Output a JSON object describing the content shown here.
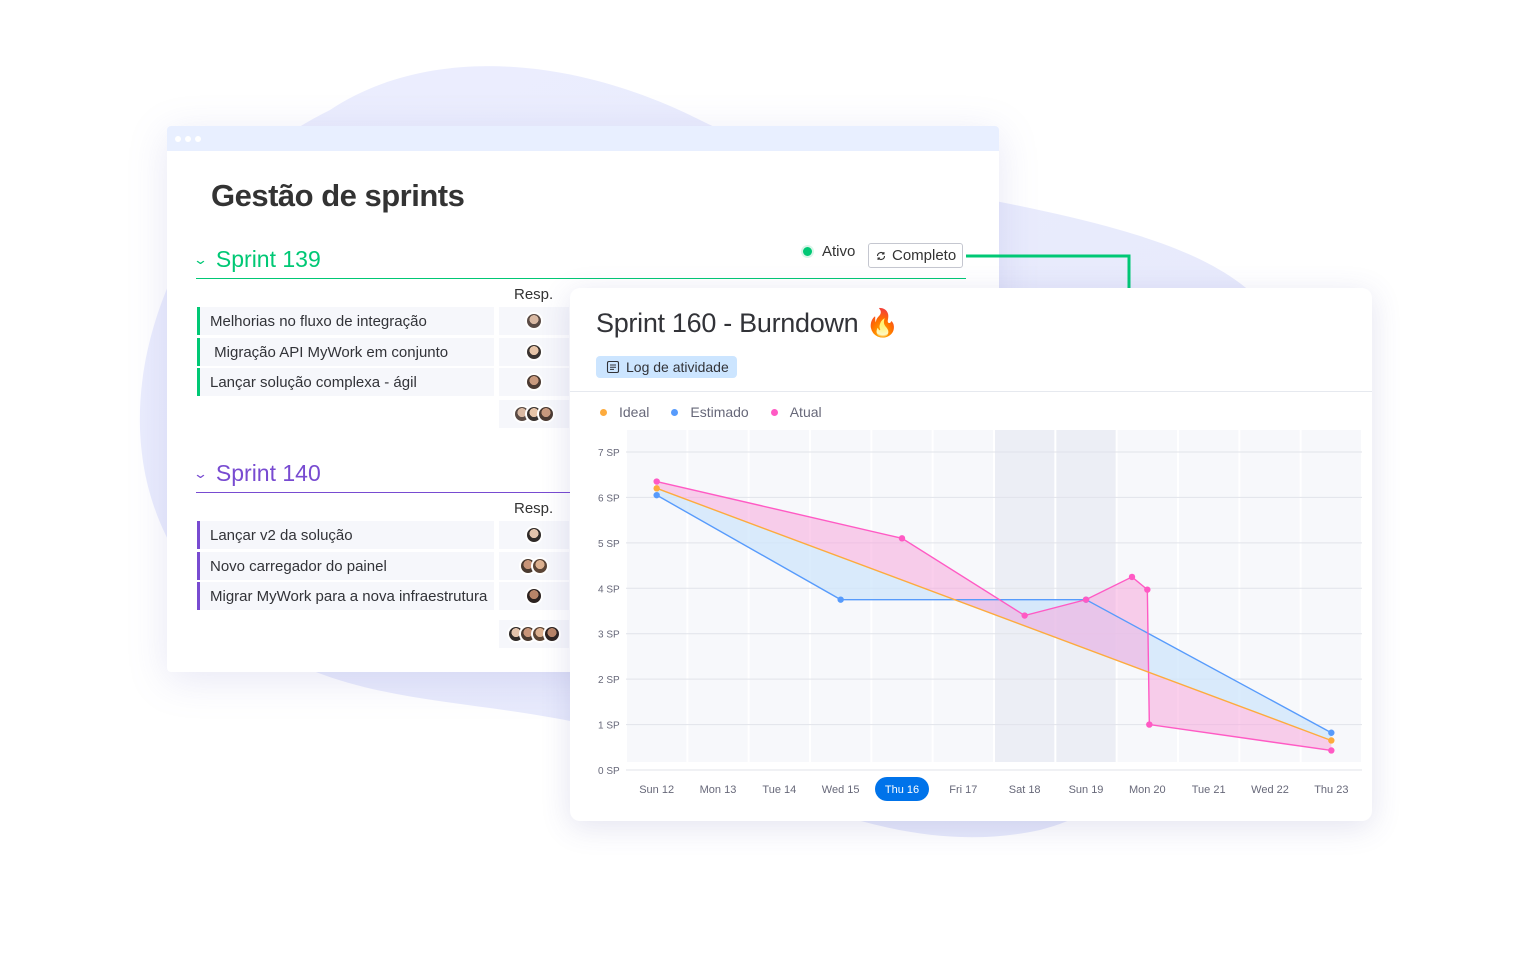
{
  "board": {
    "title": "Gestão de sprints",
    "status_active": "Ativo",
    "status_complete": "Completo",
    "groups": [
      {
        "name": "Sprint 139",
        "color": "#00c875",
        "resp_header": "Resp.",
        "items": [
          {
            "label": "Melhorias no fluxo de integração"
          },
          {
            "label": " Migração API MyWork em conjunto"
          },
          {
            "label": "Lançar solução complexa - ágil"
          }
        ]
      },
      {
        "name": "Sprint 140",
        "color": "#784bd1",
        "resp_header": "Resp.",
        "items": [
          {
            "label": "Lançar v2 da solução"
          },
          {
            "label": "Novo carregador do painel"
          },
          {
            "label": "Migrar MyWork para a nova infraestrutura"
          }
        ]
      }
    ]
  },
  "card": {
    "title": "Sprint 160 - Burndown",
    "title_emoji": "🔥",
    "log_button": "Log de atividade"
  },
  "chart_data": {
    "type": "line",
    "title": "Sprint 160 - Burndown",
    "x": [
      "Sun 12",
      "Mon 13",
      "Tue 14",
      "Wed 15",
      "Thu 16",
      "Fri 17",
      "Sat 18",
      "Sun 19",
      "Mon 20",
      "Tue 21",
      "Wed 22",
      "Thu 23"
    ],
    "y_ticks": [
      "7 SP",
      "6 SP",
      "5 SP",
      "4 SP",
      "3 SP",
      "2 SP",
      "1 SP",
      "0 SP"
    ],
    "ylim": [
      0,
      7
    ],
    "highlighted_x": "Thu 16",
    "weekend_x": [
      "Sat 18",
      "Sun 19"
    ],
    "grid": true,
    "legend_position": "top-left",
    "series": [
      {
        "name": "Ideal",
        "color": "#fdab3d",
        "points": [
          [
            "Sun 12",
            6.2
          ],
          [
            "Thu 23",
            0.65
          ]
        ]
      },
      {
        "name": "Estimado",
        "color": "#579bfc",
        "points": [
          [
            "Sun 12",
            6.05
          ],
          [
            "Wed 15",
            3.75
          ],
          [
            "Sun 19",
            3.75
          ],
          [
            "Thu 23",
            0.82
          ]
        ]
      },
      {
        "name": "Atual",
        "color": "#ff5ac4",
        "points": [
          [
            "Sun 12",
            6.35
          ],
          [
            "Thu 16",
            5.1
          ],
          [
            "Sat 18",
            3.4
          ],
          [
            "Sun 19",
            3.75
          ],
          [
            "Sun 19.75",
            4.25
          ],
          [
            "Mon 20",
            3.97
          ],
          [
            "Mon 20+",
            1.0
          ],
          [
            "Thu 23",
            0.43
          ]
        ]
      }
    ]
  }
}
